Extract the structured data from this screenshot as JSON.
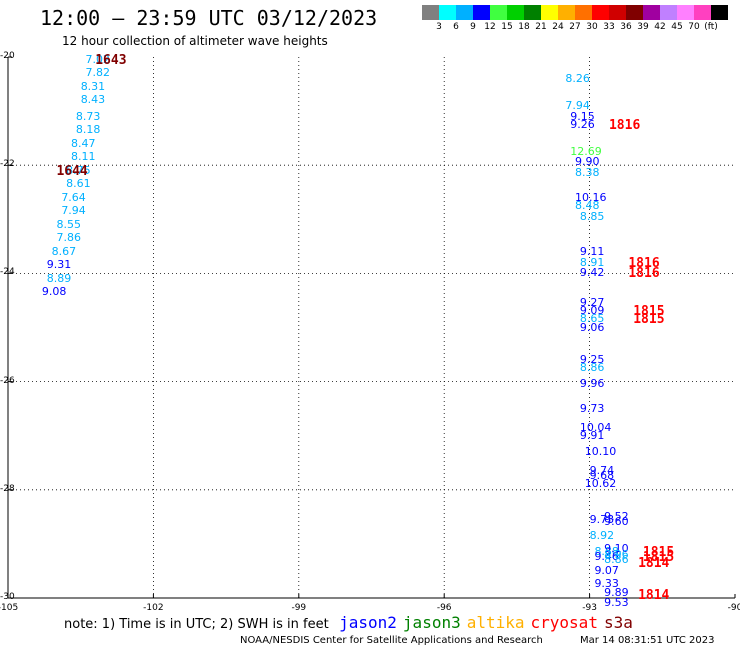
{
  "header": {
    "title": "12:00 — 23:59 UTC 03/12/2023",
    "subtitle": "12 hour collection of altimeter wave heights"
  },
  "legend": {
    "colors": [
      "#808080",
      "#00ffff",
      "#00b0ff",
      "#0000ff",
      "#40ff40",
      "#00d000",
      "#008000",
      "#ffff00",
      "#ffb000",
      "#ff7000",
      "#ff0000",
      "#d00000",
      "#800000",
      "#a000a0",
      "#c080ff",
      "#ff80ff",
      "#ff40c0",
      "#000000"
    ],
    "labels": [
      "3",
      "6",
      "9",
      "12",
      "15",
      "18",
      "21",
      "24",
      "27",
      "30",
      "33",
      "36",
      "39",
      "42",
      "45",
      "70",
      "(ft)"
    ]
  },
  "axes": {
    "x_ticks": [
      "-105",
      "-102",
      "-99",
      "-96",
      "-93",
      "-90"
    ],
    "y_ticks": [
      "-20",
      "-22",
      "-24",
      "-26",
      "-28",
      "-30"
    ],
    "lon_range": [
      -105,
      -90
    ],
    "lat_range": [
      -30,
      -20
    ]
  },
  "map_data": {
    "track_left": [
      {
        "lon": -103.4,
        "lat": -20.05,
        "v": "7.02",
        "c": "#00b0ff"
      },
      {
        "lon": -103.4,
        "lat": -20.3,
        "v": "7.82",
        "c": "#00b0ff"
      },
      {
        "lon": -103.5,
        "lat": -20.55,
        "v": "8.31",
        "c": "#00b0ff"
      },
      {
        "lon": -103.5,
        "lat": -20.8,
        "v": "8.43",
        "c": "#00b0ff"
      },
      {
        "lon": -103.6,
        "lat": -21.1,
        "v": "8.73",
        "c": "#00b0ff"
      },
      {
        "lon": -103.6,
        "lat": -21.35,
        "v": "8.18",
        "c": "#00b0ff"
      },
      {
        "lon": -103.7,
        "lat": -21.6,
        "v": "8.47",
        "c": "#00b0ff"
      },
      {
        "lon": -103.7,
        "lat": -21.85,
        "v": "8.11",
        "c": "#00b0ff"
      },
      {
        "lon": -103.8,
        "lat": -22.1,
        "v": "8.75",
        "c": "#00b0ff"
      },
      {
        "lon": -103.8,
        "lat": -22.35,
        "v": "8.61",
        "c": "#00b0ff"
      },
      {
        "lon": -103.9,
        "lat": -22.6,
        "v": "7.64",
        "c": "#00b0ff"
      },
      {
        "lon": -103.9,
        "lat": -22.85,
        "v": "7.94",
        "c": "#00b0ff"
      },
      {
        "lon": -104.0,
        "lat": -23.1,
        "v": "8.55",
        "c": "#00b0ff"
      },
      {
        "lon": -104.0,
        "lat": -23.35,
        "v": "7.86",
        "c": "#00b0ff"
      },
      {
        "lon": -104.1,
        "lat": -23.6,
        "v": "8.67",
        "c": "#00b0ff"
      },
      {
        "lon": -104.2,
        "lat": -23.85,
        "v": "9.31",
        "c": "#0000ff"
      },
      {
        "lon": -104.2,
        "lat": -24.1,
        "v": "8.89",
        "c": "#00b0ff"
      },
      {
        "lon": -104.3,
        "lat": -24.35,
        "v": "9.08",
        "c": "#0000ff"
      }
    ],
    "track_right": [
      {
        "lon": -93.5,
        "lat": -20.4,
        "v": "8.26",
        "c": "#00b0ff"
      },
      {
        "lon": -93.5,
        "lat": -20.9,
        "v": "7.94",
        "c": "#00b0ff"
      },
      {
        "lon": -93.4,
        "lat": -21.1,
        "v": "9.15",
        "c": "#0000ff"
      },
      {
        "lon": -93.4,
        "lat": -21.25,
        "v": "9.26",
        "c": "#0000ff"
      },
      {
        "lon": -93.4,
        "lat": -21.75,
        "v": "12.69",
        "c": "#40ff40"
      },
      {
        "lon": -93.3,
        "lat": -21.95,
        "v": "9.90",
        "c": "#0000ff"
      },
      {
        "lon": -93.3,
        "lat": -22.15,
        "v": "8.38",
        "c": "#00b0ff"
      },
      {
        "lon": -93.3,
        "lat": -22.6,
        "v": "10.16",
        "c": "#0000ff"
      },
      {
        "lon": -93.3,
        "lat": -22.75,
        "v": "8.48",
        "c": "#00b0ff"
      },
      {
        "lon": -93.2,
        "lat": -22.95,
        "v": "8.85",
        "c": "#00b0ff"
      },
      {
        "lon": -93.2,
        "lat": -23.6,
        "v": "9.11",
        "c": "#0000ff"
      },
      {
        "lon": -93.2,
        "lat": -23.8,
        "v": "8.91",
        "c": "#00b0ff"
      },
      {
        "lon": -93.2,
        "lat": -24.0,
        "v": "9.42",
        "c": "#0000ff"
      },
      {
        "lon": -93.2,
        "lat": -24.55,
        "v": "9.27",
        "c": "#0000ff"
      },
      {
        "lon": -93.2,
        "lat": -24.7,
        "v": "9.09",
        "c": "#0000ff"
      },
      {
        "lon": -93.2,
        "lat": -24.85,
        "v": "8.65",
        "c": "#00b0ff"
      },
      {
        "lon": -93.2,
        "lat": -25.0,
        "v": "9.06",
        "c": "#0000ff"
      },
      {
        "lon": -93.2,
        "lat": -25.6,
        "v": "9.25",
        "c": "#0000ff"
      },
      {
        "lon": -93.2,
        "lat": -25.75,
        "v": "8.86",
        "c": "#00b0ff"
      },
      {
        "lon": -93.2,
        "lat": -26.05,
        "v": "9.96",
        "c": "#0000ff"
      },
      {
        "lon": -93.2,
        "lat": -26.5,
        "v": "9.73",
        "c": "#0000ff"
      },
      {
        "lon": -93.2,
        "lat": -26.85,
        "v": "10.04",
        "c": "#0000ff"
      },
      {
        "lon": -93.2,
        "lat": -27.0,
        "v": "9.91",
        "c": "#0000ff"
      },
      {
        "lon": -93.1,
        "lat": -27.3,
        "v": "10.10",
        "c": "#0000ff"
      },
      {
        "lon": -93.0,
        "lat": -27.65,
        "v": "9.74",
        "c": "#0000ff"
      },
      {
        "lon": -93.0,
        "lat": -27.75,
        "v": "9.68",
        "c": "#0000ff"
      },
      {
        "lon": -93.1,
        "lat": -27.9,
        "v": "10.62",
        "c": "#0000ff"
      },
      {
        "lon": -93.0,
        "lat": -28.55,
        "v": "9.73",
        "c": "#0000ff"
      },
      {
        "lon": -93.0,
        "lat": -28.85,
        "v": "8.92",
        "c": "#00b0ff"
      },
      {
        "lon": -92.9,
        "lat": -29.15,
        "v": "8.88",
        "c": "#00b0ff"
      },
      {
        "lon": -92.9,
        "lat": -29.25,
        "v": "9.46",
        "c": "#0000ff"
      },
      {
        "lon": -92.9,
        "lat": -29.5,
        "v": "9.07",
        "c": "#0000ff"
      },
      {
        "lon": -92.9,
        "lat": -29.75,
        "v": "9.33",
        "c": "#0000ff"
      }
    ],
    "track_right_b": [
      {
        "lon": -92.7,
        "lat": -28.5,
        "v": "9.52",
        "c": "#0000ff"
      },
      {
        "lon": -92.7,
        "lat": -28.6,
        "v": "9.60",
        "c": "#0000ff"
      },
      {
        "lon": -92.7,
        "lat": -29.1,
        "v": "9.10",
        "c": "#0000ff"
      },
      {
        "lon": -92.7,
        "lat": -29.2,
        "v": "8.96",
        "c": "#00b0ff"
      },
      {
        "lon": -92.7,
        "lat": -29.3,
        "v": "8.86",
        "c": "#00b0ff"
      },
      {
        "lon": -92.7,
        "lat": -29.9,
        "v": "9.89",
        "c": "#0000ff"
      },
      {
        "lon": -92.7,
        "lat": -30.1,
        "v": "9.53",
        "c": "#0000ff"
      }
    ],
    "revs": [
      {
        "lon": -103.2,
        "lat": -20.05,
        "v": "1643",
        "c": "#800000"
      },
      {
        "lon": -104.0,
        "lat": -22.1,
        "v": "1644",
        "c": "#800000"
      },
      {
        "lon": -92.6,
        "lat": -21.25,
        "v": "1816",
        "c": "#ff0000"
      },
      {
        "lon": -92.2,
        "lat": -23.8,
        "v": "1816",
        "c": "#ff0000"
      },
      {
        "lon": -92.2,
        "lat": -24.0,
        "v": "1816",
        "c": "#ff0000"
      },
      {
        "lon": -92.1,
        "lat": -24.7,
        "v": "1815",
        "c": "#ff0000"
      },
      {
        "lon": -92.1,
        "lat": -24.85,
        "v": "1815",
        "c": "#ff0000"
      },
      {
        "lon": -91.9,
        "lat": -29.15,
        "v": "1815",
        "c": "#ff0000"
      },
      {
        "lon": -91.9,
        "lat": -29.25,
        "v": "1815",
        "c": "#ff0000"
      }
    ],
    "revs_b": [
      {
        "lon": -92.0,
        "lat": -29.35,
        "v": "1814",
        "c": "#ff0000"
      },
      {
        "lon": -92.0,
        "lat": -29.95,
        "v": "1814",
        "c": "#ff0000"
      }
    ]
  },
  "footer": {
    "note": "note:  1) Time is in UTC;  2) SWH is in feet",
    "satellites": [
      {
        "name": "jason2",
        "color": "#0000ff"
      },
      {
        "name": "jason3",
        "color": "#008000"
      },
      {
        "name": "altika",
        "color": "#ffb000"
      },
      {
        "name": "cryosat",
        "color": "#ff0000"
      },
      {
        "name": "s3a",
        "color": "#800000"
      }
    ],
    "credit": "NOAA/NESDIS Center for Satellite Applications and Research",
    "timestamp": "Mar 14 08:31:51 UTC 2023"
  }
}
